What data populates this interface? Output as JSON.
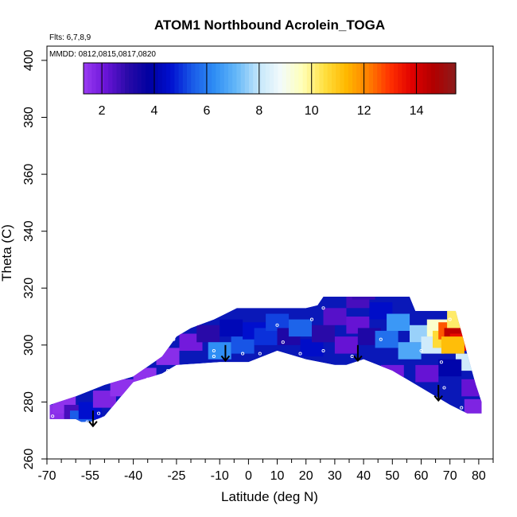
{
  "chart_data": {
    "type": "heatmap",
    "title": "ATOM1 Northbound Acrolein_TOGA",
    "subtitle": "Flts: 6,7,8,9",
    "annotation": "MMDD: 0812,0815,0817,0820",
    "xlabel": "Latitude (deg N)",
    "ylabel": "Theta (C)",
    "xlim": [
      -70,
      85
    ],
    "ylim": [
      260,
      405
    ],
    "x_ticks": [
      -70,
      -55,
      -40,
      -25,
      -10,
      0,
      10,
      20,
      30,
      40,
      50,
      60,
      70,
      80
    ],
    "x_tick_labels": [
      "-70",
      "-55",
      "-40",
      "-25",
      "-10",
      "0",
      "10",
      "20",
      "30",
      "40",
      "50",
      "60",
      "70",
      "80"
    ],
    "x_minor_ticks": [
      -65,
      -60,
      -50,
      -45,
      -35,
      -30,
      -20,
      -15,
      -5,
      5,
      15,
      25,
      35,
      45,
      55,
      65,
      75,
      85
    ],
    "y_ticks": [
      260,
      280,
      300,
      320,
      340,
      360,
      380,
      400
    ],
    "y_tick_labels": [
      "260",
      "280",
      "300",
      "320",
      "340",
      "360",
      "380",
      "400"
    ],
    "colorbar": {
      "range": [
        1.3,
        15.5
      ],
      "ticks": [
        2,
        4,
        6,
        8,
        10,
        12,
        14
      ],
      "tick_labels": [
        "2",
        "4",
        "6",
        "8",
        "10",
        "12",
        "14"
      ],
      "colors": [
        "#9a3cf2",
        "#6b14d8",
        "#2a0aa8",
        "#0000a0",
        "#0010d0",
        "#1a5ce8",
        "#2f8ff5",
        "#66b8f8",
        "#c4e6fb",
        "#f2fbfb",
        "#ffffb8",
        "#ffe040",
        "#ffb800",
        "#ff8000",
        "#ff3000",
        "#e00000",
        "#b00000",
        "#8c1c1c"
      ]
    },
    "domain_lower": [
      [
        -69,
        274
      ],
      [
        -60,
        274
      ],
      [
        -58,
        273
      ],
      [
        -55,
        273
      ],
      [
        -50,
        275
      ],
      [
        -45,
        281
      ],
      [
        -40,
        287
      ],
      [
        -30,
        290
      ],
      [
        -25,
        293
      ],
      [
        -10,
        294
      ],
      [
        0,
        294
      ],
      [
        10,
        298
      ],
      [
        20,
        295
      ],
      [
        30,
        293
      ],
      [
        34,
        293
      ],
      [
        40,
        295
      ],
      [
        50,
        291
      ],
      [
        60,
        285
      ],
      [
        70,
        279
      ],
      [
        76,
        276
      ],
      [
        81,
        276
      ]
    ],
    "domain_upper": [
      [
        -69,
        279
      ],
      [
        -60,
        282
      ],
      [
        -50,
        286
      ],
      [
        -40,
        289
      ],
      [
        -30,
        296
      ],
      [
        -25,
        303
      ],
      [
        -20,
        306
      ],
      [
        -12,
        309
      ],
      [
        -8,
        311
      ],
      [
        -4,
        313
      ],
      [
        10,
        313
      ],
      [
        20,
        313
      ],
      [
        24,
        314
      ],
      [
        26,
        317
      ],
      [
        56,
        317
      ],
      [
        58,
        312
      ],
      [
        72,
        312
      ],
      [
        76,
        297
      ],
      [
        79,
        286
      ],
      [
        81,
        280
      ],
      [
        81,
        276
      ]
    ],
    "cells": [
      {
        "lat": -68,
        "theta": 276,
        "value": 1.6
      },
      {
        "lat": -64,
        "theta": 279,
        "value": 1.5
      },
      {
        "lat": -60,
        "theta": 276,
        "value": 2.6
      },
      {
        "lat": -58,
        "theta": 274,
        "value": 5.5
      },
      {
        "lat": -55,
        "theta": 277,
        "value": 4.6
      },
      {
        "lat": -50,
        "theta": 281,
        "value": 1.8
      },
      {
        "lat": -44,
        "theta": 285,
        "value": 1.5
      },
      {
        "lat": -36,
        "theta": 289,
        "value": 1.5
      },
      {
        "lat": -28,
        "theta": 296,
        "value": 1.6
      },
      {
        "lat": -20,
        "theta": 301,
        "value": 2.0
      },
      {
        "lat": -14,
        "theta": 304,
        "value": 3.0
      },
      {
        "lat": -10,
        "theta": 298,
        "value": 6.3
      },
      {
        "lat": -6,
        "theta": 306,
        "value": 4.2
      },
      {
        "lat": -2,
        "theta": 300,
        "value": 5.4
      },
      {
        "lat": 2,
        "theta": 305,
        "value": 4.6
      },
      {
        "lat": 6,
        "theta": 303,
        "value": 5.0
      },
      {
        "lat": 10,
        "theta": 308,
        "value": 5.2
      },
      {
        "lat": 14,
        "theta": 303,
        "value": 3.2
      },
      {
        "lat": 18,
        "theta": 306,
        "value": 5.6
      },
      {
        "lat": 22,
        "theta": 299,
        "value": 4.5
      },
      {
        "lat": 26,
        "theta": 304,
        "value": 3.0
      },
      {
        "lat": 30,
        "theta": 310,
        "value": 2.4
      },
      {
        "lat": 34,
        "theta": 300,
        "value": 2.2
      },
      {
        "lat": 38,
        "theta": 307,
        "value": 2.2
      },
      {
        "lat": 42,
        "theta": 303,
        "value": 3.2
      },
      {
        "lat": 46,
        "theta": 312,
        "value": 4.5
      },
      {
        "lat": 48,
        "theta": 302,
        "value": 5.8
      },
      {
        "lat": 52,
        "theta": 308,
        "value": 6.5
      },
      {
        "lat": 56,
        "theta": 298,
        "value": 6.8
      },
      {
        "lat": 60,
        "theta": 304,
        "value": 7.6
      },
      {
        "lat": 64,
        "theta": 300,
        "value": 8.2
      },
      {
        "lat": 66,
        "theta": 306,
        "value": 9.4
      },
      {
        "lat": 68,
        "theta": 302,
        "value": 10.6
      },
      {
        "lat": 70,
        "theta": 305,
        "value": 12.6
      },
      {
        "lat": 72,
        "theta": 303,
        "value": 14.4
      },
      {
        "lat": 74,
        "theta": 301,
        "value": 13.6
      },
      {
        "lat": 71,
        "theta": 300,
        "value": 11.2
      },
      {
        "lat": 73,
        "theta": 309,
        "value": 10.2
      },
      {
        "lat": 76,
        "theta": 294,
        "value": 8.2
      },
      {
        "lat": 70,
        "theta": 292,
        "value": 4.0
      },
      {
        "lat": 62,
        "theta": 290,
        "value": 2.2
      },
      {
        "lat": 50,
        "theta": 290,
        "value": 2.0
      },
      {
        "lat": 78,
        "theta": 285,
        "value": 2.2
      },
      {
        "lat": 79,
        "theta": 278,
        "value": 1.8
      },
      {
        "lat": 38,
        "theta": 316,
        "value": 2.6
      },
      {
        "lat": 40,
        "theta": 319,
        "value": 2.8
      }
    ],
    "points": [
      {
        "lat": -68,
        "theta": 275
      },
      {
        "lat": -60,
        "theta": 273
      },
      {
        "lat": -56,
        "theta": 273
      },
      {
        "lat": -52,
        "theta": 276
      },
      {
        "lat": -35,
        "theta": 288
      },
      {
        "lat": -28,
        "theta": 291
      },
      {
        "lat": -26,
        "theta": 302
      },
      {
        "lat": -12,
        "theta": 298
      },
      {
        "lat": -12,
        "theta": 296
      },
      {
        "lat": -2,
        "theta": 297
      },
      {
        "lat": 4,
        "theta": 297
      },
      {
        "lat": 0,
        "theta": 314
      },
      {
        "lat": 10,
        "theta": 307
      },
      {
        "lat": 12,
        "theta": 301
      },
      {
        "lat": 18,
        "theta": 297
      },
      {
        "lat": 22,
        "theta": 309
      },
      {
        "lat": 26,
        "theta": 313
      },
      {
        "lat": 26,
        "theta": 298
      },
      {
        "lat": 36,
        "theta": 296
      },
      {
        "lat": 40,
        "theta": 319
      },
      {
        "lat": 46,
        "theta": 302
      },
      {
        "lat": 60,
        "theta": 298
      },
      {
        "lat": 67,
        "theta": 294
      },
      {
        "lat": 70,
        "theta": 309
      },
      {
        "lat": 68,
        "theta": 285
      },
      {
        "lat": 74,
        "theta": 278
      }
    ],
    "arrows": [
      {
        "lat": -54,
        "theta": 277
      },
      {
        "lat": -8,
        "theta": 300
      },
      {
        "lat": 38,
        "theta": 300
      },
      {
        "lat": 66,
        "theta": 286
      }
    ]
  }
}
